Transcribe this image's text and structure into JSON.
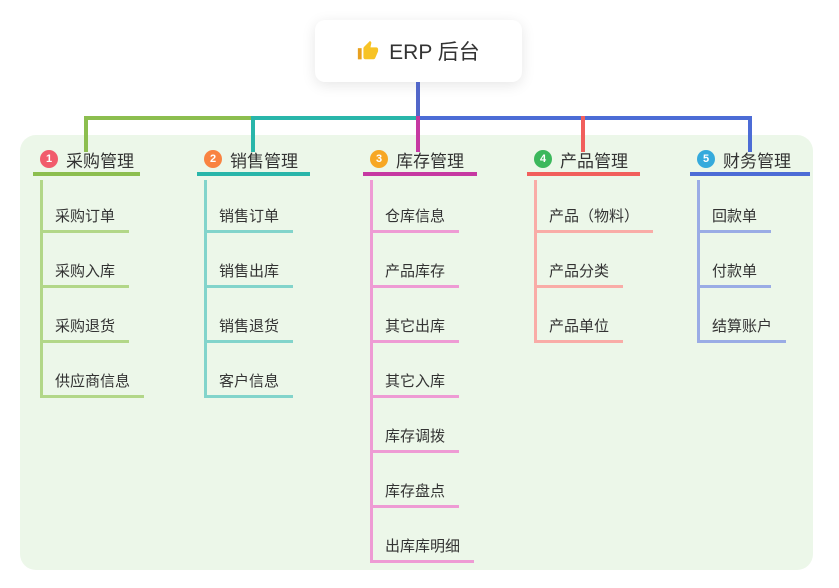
{
  "root": {
    "label": "ERP 后台",
    "icon": "thumbs-up-icon"
  },
  "colors": {
    "page_background": "#ffffff",
    "panel_background": "#ECF7E9",
    "root_drop_line": "#5267C9",
    "text": "#333333"
  },
  "branches": [
    {
      "badge": "1",
      "label": "采购管理",
      "color": "#8CBE4F",
      "light_color": "#B2D788",
      "badge_color": "#F15B6C",
      "children": [
        "采购订单",
        "采购入库",
        "采购退货",
        "供应商信息"
      ]
    },
    {
      "badge": "2",
      "label": "销售管理",
      "color": "#29B6AA",
      "light_color": "#82D4CB",
      "badge_color": "#F98341",
      "children": [
        "销售订单",
        "销售出库",
        "销售退货",
        "客户信息"
      ]
    },
    {
      "badge": "3",
      "label": "库存管理",
      "color": "#C639A2",
      "light_color": "#EE9BD4",
      "badge_color": "#F7A723",
      "children": [
        "仓库信息",
        "产品库存",
        "其它出库",
        "其它入库",
        "库存调拨",
        "库存盘点",
        "出库库明细"
      ]
    },
    {
      "badge": "4",
      "label": "产品管理",
      "color": "#F15F5C",
      "light_color": "#F9ACA7",
      "badge_color": "#3CB85C",
      "children": [
        "产品（物料）",
        "产品分类",
        "产品单位"
      ]
    },
    {
      "badge": "5",
      "label": "财务管理",
      "color": "#4C6CD6",
      "light_color": "#9AACE5",
      "badge_color": "#35AADC",
      "children": [
        "回款单",
        "付款单",
        "结算账户"
      ]
    }
  ]
}
